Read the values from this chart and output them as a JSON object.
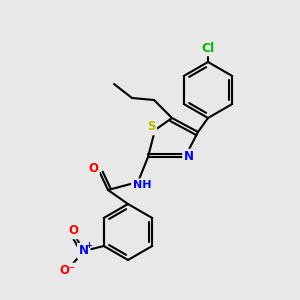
{
  "bg_color": "#e8e8e8",
  "bond_color": "#000000",
  "atom_colors": {
    "S": "#b8b800",
    "N": "#0000ff",
    "O": "#ff0000",
    "Cl": "#00bb00",
    "H": "#888888",
    "C": "#000000"
  },
  "lw": 1.5,
  "fontsize": 8.5
}
